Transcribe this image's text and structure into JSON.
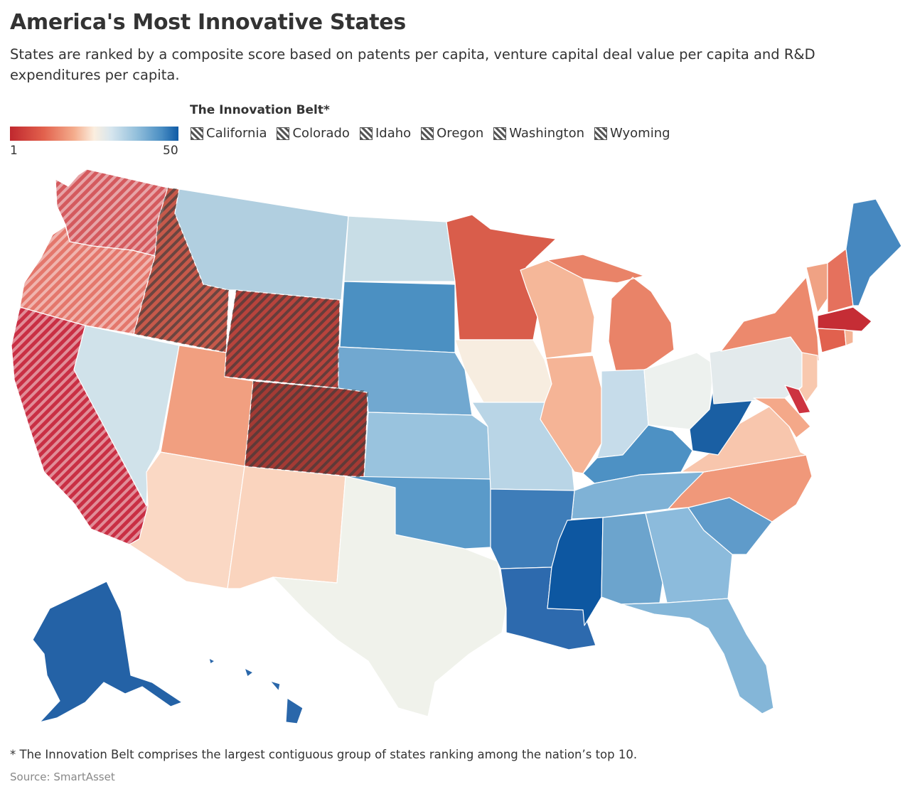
{
  "title": "America's Most Innovative States",
  "subtitle": "States are ranked by a composite score based on patents per capita, venture capital deal value per capita and R&D expenditures per capita.",
  "scale": {
    "min_label": "1",
    "max_label": "50",
    "low_color": "#c0282e",
    "mid_color": "#fbeedf",
    "high_color": "#0e5aa6"
  },
  "belt": {
    "title": "The Innovation Belt*",
    "states": [
      "California",
      "Colorado",
      "Idaho",
      "Oregon",
      "Washington",
      "Wyoming"
    ],
    "hatch_color": "#3a3a3a"
  },
  "map_colors": {
    "WA": "#d45a5e",
    "OR": "#e4776c",
    "CA": "#c92f44",
    "ID": "#c6594a",
    "WY": "#b8433c",
    "CO": "#a43a34",
    "MT": "#b1cfe0",
    "ND": "#c8dde6",
    "SD": "#4b90c2",
    "NE": "#71a8d0",
    "KS": "#99c3de",
    "MN": "#d95d4b",
    "IA": "#f7ede0",
    "MO": "#b9d5e6",
    "WI": "#f5b799",
    "IL": "#f5b496",
    "MI": "#e98368",
    "IN": "#c6dcea",
    "OH": "#edf1ee",
    "KY": "#4d91c4",
    "TN": "#7fb2d6",
    "WV": "#1a5fa3",
    "NV": "#d0e2ea",
    "UT": "#f19f80",
    "AZ": "#fad8c4",
    "NM": "#fad4be",
    "TX": "#f0f2eb",
    "OK": "#5a9ac9",
    "AR": "#3e7db9",
    "LA": "#2d6aae",
    "MS": "#0d57a1",
    "AL": "#6ca4cd",
    "GA": "#8cbbdc",
    "FL": "#84b6d8",
    "SC": "#5f9bca",
    "NC": "#f0987a",
    "VA": "#f8c6ad",
    "PA": "#e3eaec",
    "NY": "#ec896d",
    "VT": "#f0a284",
    "NH": "#e5715d",
    "ME": "#4688c0",
    "MA": "#c52d35",
    "CT": "#e1614e",
    "RI": "#f4b395",
    "NJ": "#f8c8ae",
    "DE": "#cd3340",
    "MD": "#f4a889",
    "AK": "#2462a6",
    "HI": "#2a67aa"
  },
  "footnote": "* The Innovation Belt comprises the largest contiguous group of states ranking among the nation’s top 10.",
  "source": "Source: SmartAsset"
}
